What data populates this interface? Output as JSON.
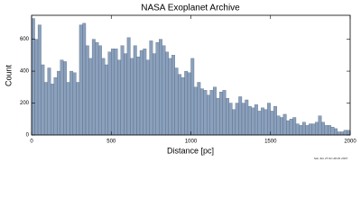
{
  "chart_data": {
    "type": "histogram",
    "title": "NASA Exoplanet Archive",
    "x_label": "Distance [pc]",
    "y_label": "Count",
    "footnote": "Sun Jun 25 02:49:29 2023",
    "bins": [
      0,
      20,
      40,
      60,
      80,
      100,
      120,
      140,
      160,
      180,
      200,
      220,
      240,
      260,
      280,
      300,
      320,
      340,
      360,
      380,
      400,
      420,
      440,
      460,
      480,
      500,
      520,
      540,
      560,
      580,
      600,
      620,
      640,
      660,
      680,
      700,
      720,
      740,
      760,
      780,
      800,
      820,
      840,
      860,
      880,
      900,
      920,
      940,
      960,
      980,
      1000,
      1020,
      1040,
      1060,
      1080,
      1100,
      1120,
      1140,
      1160,
      1180,
      1200,
      1220,
      1240,
      1260,
      1280,
      1300,
      1320,
      1340,
      1360,
      1380,
      1400,
      1420,
      1440,
      1460,
      1480,
      1500,
      1520,
      1540,
      1560,
      1580,
      1600,
      1620,
      1640,
      1660,
      1680,
      1700,
      1720,
      1740,
      1760,
      1780,
      1800,
      1820,
      1840,
      1860,
      1880,
      1900,
      1920,
      1940,
      1960,
      1980,
      2000
    ],
    "values": [
      730,
      600,
      690,
      440,
      330,
      420,
      320,
      360,
      400,
      470,
      460,
      330,
      400,
      390,
      330,
      690,
      700,
      560,
      480,
      600,
      580,
      560,
      480,
      440,
      520,
      540,
      540,
      470,
      560,
      510,
      610,
      480,
      560,
      490,
      530,
      540,
      470,
      590,
      510,
      580,
      600,
      560,
      520,
      480,
      500,
      420,
      380,
      360,
      400,
      390,
      480,
      300,
      330,
      290,
      280,
      250,
      280,
      300,
      230,
      270,
      280,
      230,
      200,
      160,
      200,
      240,
      200,
      220,
      180,
      170,
      190,
      150,
      170,
      160,
      200,
      150,
      180,
      120,
      110,
      130,
      90,
      100,
      110,
      70,
      60,
      80,
      60,
      70,
      70,
      80,
      120,
      80,
      60,
      60,
      50,
      40,
      20,
      20,
      30,
      30
    ],
    "color": "#8aa0bc",
    "xlim": [
      0,
      2000
    ],
    "ylim": [
      0,
      750
    ],
    "xticks": [
      0,
      500,
      1000,
      1500,
      2000
    ],
    "yticks": [
      0,
      200,
      400,
      600
    ]
  }
}
